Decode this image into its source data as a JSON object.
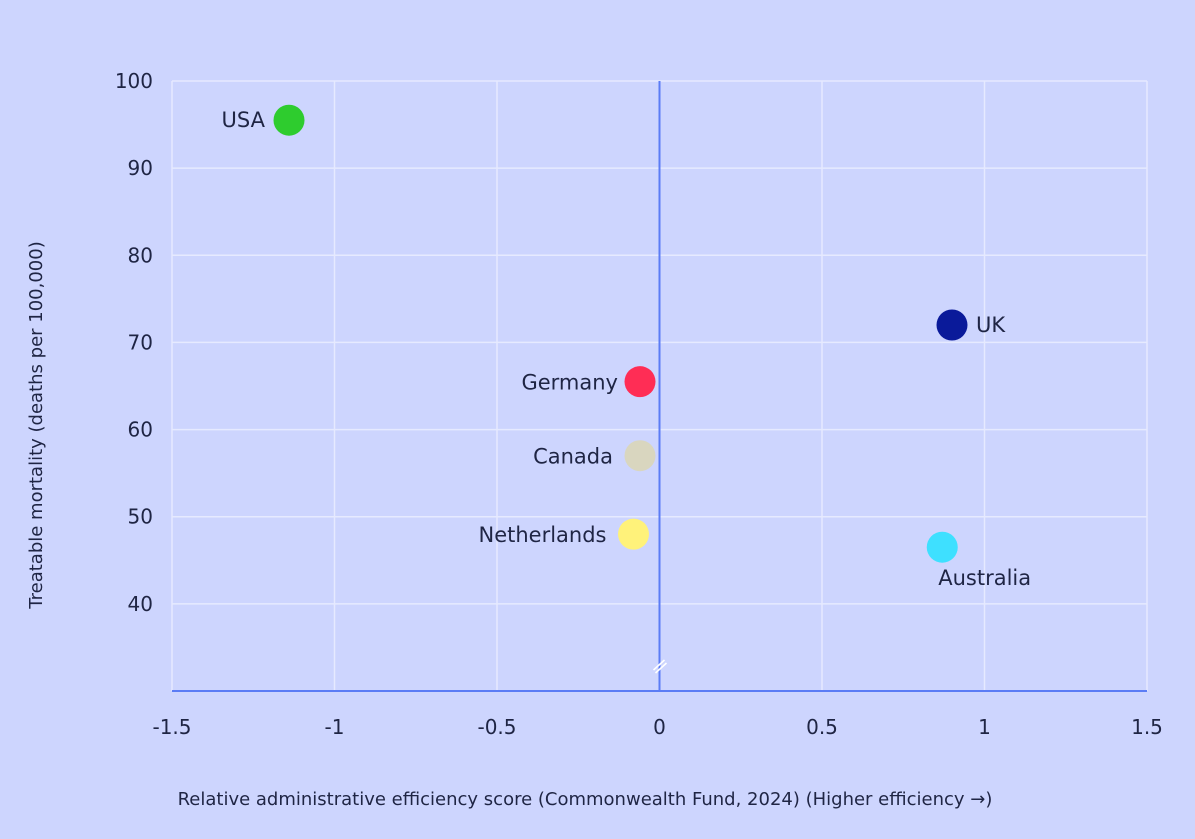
{
  "chart_data": {
    "type": "scatter",
    "title": "",
    "xlabel": "Relative administrative efficiency score (Commonwealth Fund, 2024) (Higher efficiency →)",
    "ylabel": "Treatable mortality (deaths per 100,000)",
    "xlim": [
      -1.5,
      1.5
    ],
    "ylim": [
      30,
      100
    ],
    "x_ticks": [
      "-1.5",
      "-1",
      "-0.5",
      "0",
      "0.5",
      "1",
      "1.5"
    ],
    "y_ticks": [
      "40",
      "50",
      "60",
      "70",
      "80",
      "90",
      "100"
    ],
    "grid": true,
    "points": [
      {
        "label": "USA",
        "x": -1.14,
        "y": 95.5,
        "color": "#2ecc2e"
      },
      {
        "label": "UK",
        "x": 0.9,
        "y": 72.0,
        "color": "#0a1a9a"
      },
      {
        "label": "Germany",
        "x": -0.06,
        "y": 65.5,
        "color": "#ff2d55"
      },
      {
        "label": "Canada",
        "x": -0.06,
        "y": 57.0,
        "color": "#d9d6bf"
      },
      {
        "label": "Netherlands",
        "x": -0.08,
        "y": 48.0,
        "color": "#fff27a"
      },
      {
        "label": "Australia",
        "x": 0.87,
        "y": 46.5,
        "color": "#3ee0ff"
      }
    ],
    "colors": {
      "background": "#cdd5fe",
      "grid": "#e6eaff",
      "axis": "#5b7cf5",
      "text": "#1f2544"
    }
  }
}
